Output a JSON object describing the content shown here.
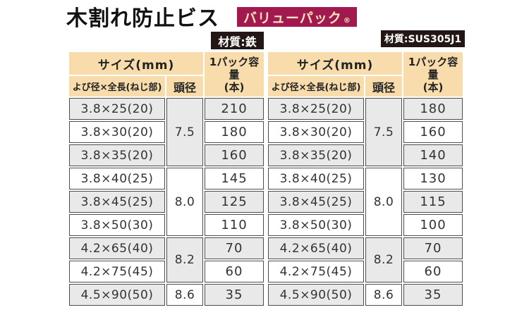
{
  "header": {
    "title": "木割れ防止ビス",
    "value_pack": "バリューパック",
    "registered": "®"
  },
  "badges": {
    "material_iron": "材質:鉄",
    "material_sus": "材質:SUS305J1"
  },
  "table_headers": {
    "size_group": "サイズ(mm)",
    "size_column": "よび径×全長(ねじ部)",
    "head_diameter_column": "頭径",
    "capacity_line1": "1パック容量",
    "capacity_line2": "(本)"
  },
  "tables": [
    {
      "name": "iron",
      "material_label": "材質:鉄",
      "groups": [
        {
          "head_diameter": "7.5",
          "rows": [
            {
              "size": "3.8×25(20)",
              "capacity": "210"
            },
            {
              "size": "3.8×30(20)",
              "capacity": "180"
            },
            {
              "size": "3.8×35(20)",
              "capacity": "160"
            }
          ]
        },
        {
          "head_diameter": "8.0",
          "rows": [
            {
              "size": "3.8×40(25)",
              "capacity": "145"
            },
            {
              "size": "3.8×45(25)",
              "capacity": "125"
            },
            {
              "size": "3.8×50(30)",
              "capacity": "110"
            }
          ]
        },
        {
          "head_diameter": "8.2",
          "rows": [
            {
              "size": "4.2×65(40)",
              "capacity": "70"
            },
            {
              "size": "4.2×75(45)",
              "capacity": "60"
            }
          ]
        },
        {
          "head_diameter": "8.6",
          "rows": [
            {
              "size": "4.5×90(50)",
              "capacity": "35"
            }
          ]
        }
      ]
    },
    {
      "name": "sus305j1",
      "material_label": "材質:SUS305J1",
      "groups": [
        {
          "head_diameter": "7.5",
          "rows": [
            {
              "size": "3.8×25(20)",
              "capacity": "180"
            },
            {
              "size": "3.8×30(20)",
              "capacity": "160"
            },
            {
              "size": "3.8×35(20)",
              "capacity": "140"
            }
          ]
        },
        {
          "head_diameter": "8.0",
          "rows": [
            {
              "size": "3.8×40(25)",
              "capacity": "130"
            },
            {
              "size": "3.8×45(25)",
              "capacity": "115"
            },
            {
              "size": "3.8×50(30)",
              "capacity": "100"
            }
          ]
        },
        {
          "head_diameter": "8.2",
          "rows": [
            {
              "size": "4.2×65(40)",
              "capacity": "70"
            },
            {
              "size": "4.2×75(45)",
              "capacity": "60"
            }
          ]
        },
        {
          "head_diameter": "8.6",
          "rows": [
            {
              "size": "4.5×90(50)",
              "capacity": "35"
            }
          ]
        }
      ]
    }
  ],
  "colors": {
    "header_peach": "#F9DCAC",
    "row_shade": "#E9E9E9",
    "cell_border": "#4D4D4D",
    "value_pack_bg": "#A21950",
    "value_pack_text": "#F6E4BE",
    "material_badge_bg": "#221714"
  }
}
